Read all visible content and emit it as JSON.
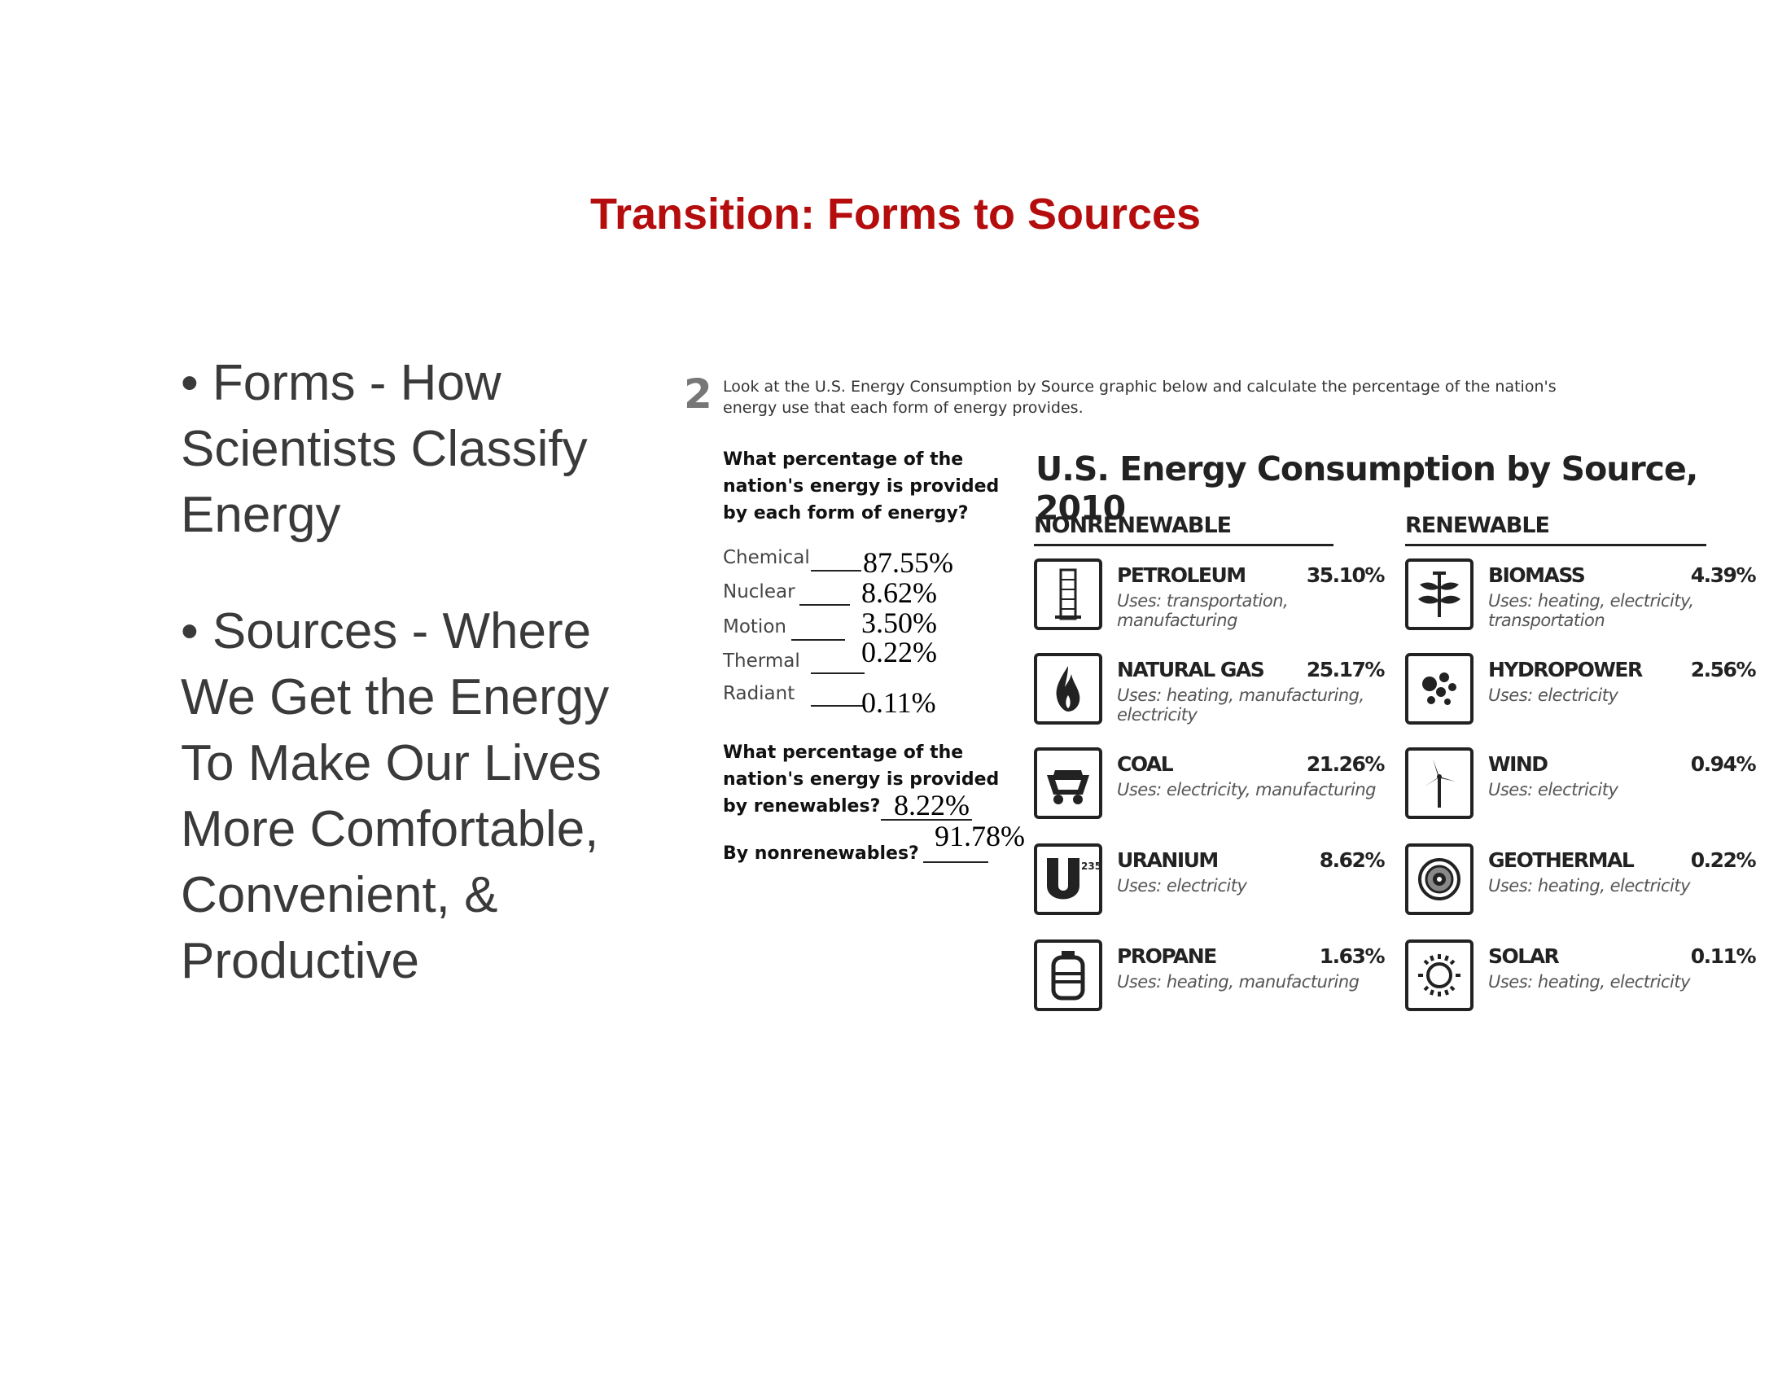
{
  "slide": {
    "title": "Transition: Forms to Sources",
    "bullets": [
      "• Forms - How Scientists Classify Energy",
      "• Sources - Where We Get the Energy To Make Our Lives More Comfortable, Convenient, & Productive"
    ]
  },
  "worksheet": {
    "number": "2",
    "intro": "Look at the U.S. Energy Consumption by Source graphic below and calculate the percentage of the nation's energy use that each form of energy provides.",
    "question1": "What percentage of the nation's energy is provided by each form of energy?",
    "forms": [
      {
        "label": "Chemical",
        "answer": "87.55%"
      },
      {
        "label": "Nuclear",
        "answer": "8.62%"
      },
      {
        "label": "Motion",
        "answer": "3.50%"
      },
      {
        "label": "Thermal",
        "answer": "0.22%"
      },
      {
        "label": "Radiant",
        "answer": "0.11%"
      }
    ],
    "question2": "What percentage of the nation's energy is provided by renewables?",
    "renewables_answer": "8.22%",
    "question3": "By nonrenewables?",
    "nonrenewables_answer": "91.78%"
  },
  "chart": {
    "title": "U.S. Energy Consumption by Source, 2010",
    "nonrenewable_heading": "NONRENEWABLE",
    "renewable_heading": "RENEWABLE",
    "nonrenewable": [
      {
        "name": "PETROLEUM",
        "percent": "35.10%",
        "uses": "Uses: transportation, manufacturing",
        "icon": "oil-derrick-icon"
      },
      {
        "name": "NATURAL GAS",
        "percent": "25.17%",
        "uses": "Uses: heating, manufacturing, electricity",
        "icon": "flame-icon"
      },
      {
        "name": "COAL",
        "percent": "21.26%",
        "uses": "Uses: electricity, manufacturing",
        "icon": "coal-cart-icon"
      },
      {
        "name": "URANIUM",
        "percent": "8.62%",
        "uses": "Uses: electricity",
        "icon": "uranium-icon",
        "icon_text": "235"
      },
      {
        "name": "PROPANE",
        "percent": "1.63%",
        "uses": "Uses: heating, manufacturing",
        "icon": "propane-tank-icon"
      }
    ],
    "renewable": [
      {
        "name": "BIOMASS",
        "percent": "4.39%",
        "uses": "Uses: heating, electricity, transportation",
        "icon": "plant-icon"
      },
      {
        "name": "HYDROPOWER",
        "percent": "2.56%",
        "uses": "Uses: electricity",
        "icon": "water-drops-icon"
      },
      {
        "name": "WIND",
        "percent": "0.94%",
        "uses": "Uses: electricity",
        "icon": "wind-turbine-icon"
      },
      {
        "name": "GEOTHERMAL",
        "percent": "0.22%",
        "uses": "Uses: heating, electricity",
        "icon": "geothermal-icon"
      },
      {
        "name": "SOLAR",
        "percent": "0.11%",
        "uses": "Uses: heating, electricity",
        "icon": "sun-icon"
      }
    ]
  }
}
